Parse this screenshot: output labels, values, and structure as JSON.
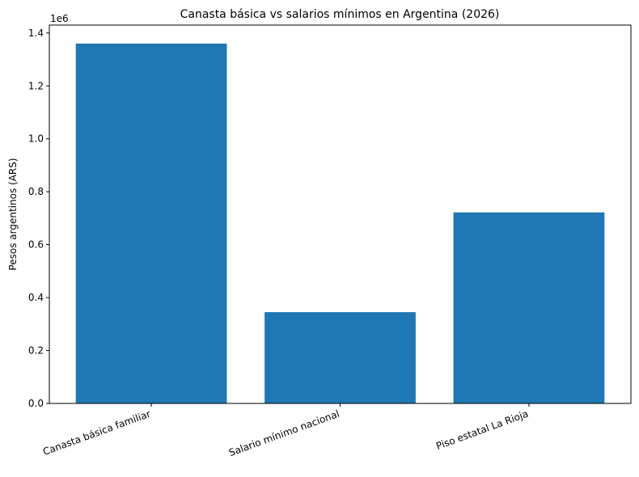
{
  "chart_data": {
    "type": "bar",
    "title": "Canasta básica vs salarios mínimos en Argentina (2026)",
    "y_label": "Pesos argentinos (ARS)",
    "y_offset_label": "1e6",
    "categories": [
      "Canasta básica familiar",
      "Salario mínimo nacional",
      "Piso estatal La Rioja"
    ],
    "values": [
      1360000,
      345000,
      722000
    ],
    "color": "#1f77b4",
    "ylim": [
      0,
      1430000
    ],
    "yticks": [
      {
        "value": 0,
        "label": "0.0"
      },
      {
        "value": 200000,
        "label": "0.2"
      },
      {
        "value": 400000,
        "label": "0.4"
      },
      {
        "value": 600000,
        "label": "0.6"
      },
      {
        "value": 800000,
        "label": "0.8"
      },
      {
        "value": 1000000,
        "label": "1.0"
      },
      {
        "value": 1200000,
        "label": "1.2"
      },
      {
        "value": 1400000,
        "label": "1.4"
      }
    ],
    "grid": false
  }
}
